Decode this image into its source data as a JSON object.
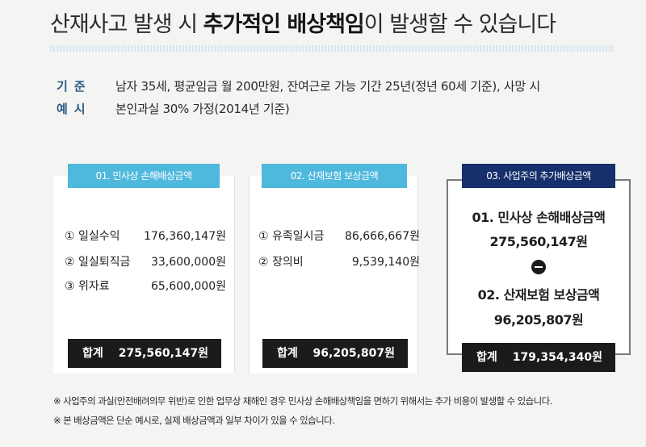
{
  "title": {
    "part1": "산재사고 발생 시 ",
    "part2": "추가적인 배상책임",
    "part3": "이 발생할 수 있습니다"
  },
  "standard": {
    "label1": "기준",
    "label2": "예시",
    "line1": "남자 35세, 평균임금 월 200만원, 잔여근로 가능 기간 25년(정년 60세 기준), 사망 시",
    "line2": "본인과실 30% 가정(2014년 기준)"
  },
  "panels": [
    {
      "tab": "01. 민사상 손해배상금액",
      "items": [
        {
          "label": "① 일실수익",
          "value": "176,360,147원"
        },
        {
          "label": "② 일실퇴직금",
          "value": "33,600,000원"
        },
        {
          "label": "③ 위자료",
          "value": "65,600,000원"
        }
      ],
      "total_label": "합계",
      "total_value": "275,560,147원"
    },
    {
      "tab": "02. 산재보험 보상금액",
      "items": [
        {
          "label": "① 유족일시금",
          "value": "86,666,667원"
        },
        {
          "label": "② 장의비",
          "value": "9,539,140원"
        }
      ],
      "total_label": "합계",
      "total_value": "96,205,807원"
    },
    {
      "tab": "03. 사업주의 추가배상금액",
      "line1": "01. 민사상 손해배상금액",
      "line2": "275,560,147원",
      "line3": "02. 산재보험 보상금액",
      "line4": "96,205,807원",
      "total_label": "합계",
      "total_value": "179,354,340원"
    }
  ],
  "notes": [
    "※ 사업주의 과실(안전배려의무 위반)로 인한 업무상 재해인 경우 민사상 손해배상책임을 면하기 위해서는 추가 비용이 발생할 수 있습니다.",
    "※ 본 배상금액은 단순 예시로, 실제 배상금액과 일부 차이가 있을 수 있습니다."
  ]
}
